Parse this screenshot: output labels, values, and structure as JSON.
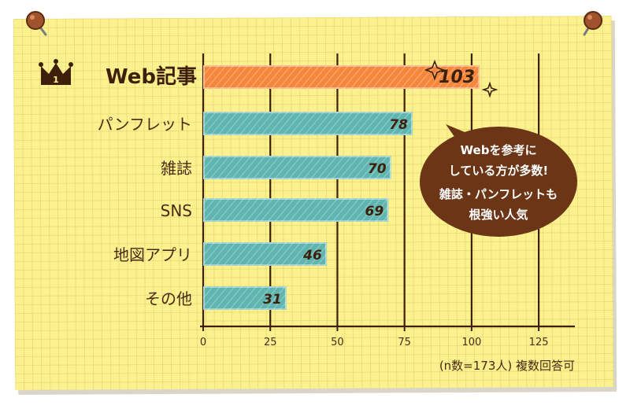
{
  "chart_data": {
    "type": "bar",
    "orientation": "horizontal",
    "categories": [
      "Web記事",
      "パンフレット",
      "雑誌",
      "SNS",
      "地図アプリ",
      "その他"
    ],
    "values": [
      103,
      78,
      70,
      69,
      46,
      31
    ],
    "xlim": [
      0,
      137
    ],
    "xticks": [
      0,
      25,
      50,
      75,
      100,
      125
    ],
    "grid": true,
    "highlight_index": 0,
    "rank_badge": "1",
    "colors": {
      "highlight": "#f5873c",
      "bar": "#5fb5b0",
      "grid": "#3d1f0a",
      "text": "#4a2a14"
    },
    "annotation": "(n数=173人) 複数回答可",
    "callout": [
      "Webを参考に",
      "している方が多数!",
      "雑誌・パンフレットも",
      "根強い人気"
    ]
  }
}
